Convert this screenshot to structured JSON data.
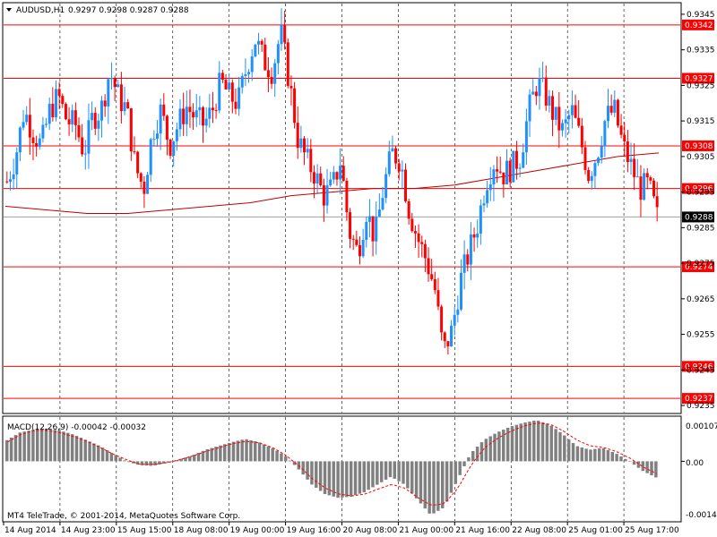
{
  "header": {
    "symbol_timeframe": "AUDUSD,H1",
    "ohlc": "0.9297 0.9298 0.9287 0.9288"
  },
  "macd": {
    "label": "MACD(12,26,9) -0.00042 -0.00032",
    "y_ticks": [
      "0.00107",
      "0.00",
      "-0.00145"
    ]
  },
  "copyright": "MT4 TeleTrade, © 2001-2014, MetaQuotes Software Corp.",
  "colors": {
    "bull": "#1e90ff",
    "bear": "#ff0000",
    "grid": "#000000",
    "level": "#ff0000",
    "ma": "#c00000",
    "macd_hist": "#808080",
    "macd_signal": "#ff0000",
    "current_line": "#a0a0a0"
  },
  "chart_data": {
    "type": "candlestick",
    "price_ticks": [
      "0.9345",
      "0.9335",
      "0.9325",
      "0.9315",
      "0.9305",
      "0.9295",
      "0.9285",
      "0.9275",
      "0.9265",
      "0.9255",
      "0.9245",
      "0.9235"
    ],
    "price_range": [
      0.9233,
      0.9348
    ],
    "time_labels": [
      "14 Aug 2014",
      "14 Aug 23:00",
      "15 Aug 15:00",
      "18 Aug 08:00",
      "19 Aug 00:00",
      "19 Aug 16:00",
      "20 Aug 08:00",
      "21 Aug 00:00",
      "21 Aug 16:00",
      "22 Aug 08:00",
      "25 Aug 01:00",
      "25 Aug 17:00"
    ],
    "levels": [
      "0.9342",
      "0.9327",
      "0.9308",
      "0.9296",
      "0.9274",
      "0.9246",
      "0.9237"
    ],
    "current_price": "0.9288",
    "close_path": [
      0.9298,
      0.9305,
      0.9318,
      0.9312,
      0.9308,
      0.9318,
      0.9322,
      0.9315,
      0.9314,
      0.9306,
      0.9316,
      0.9318,
      0.9329,
      0.9322,
      0.9318,
      0.9302,
      0.9296,
      0.9312,
      0.9318,
      0.9308,
      0.9314,
      0.9319,
      0.9316,
      0.9314,
      0.9318,
      0.9326,
      0.9322,
      0.932,
      0.933,
      0.9338,
      0.9332,
      0.9329,
      0.934,
      0.9326,
      0.931,
      0.9304,
      0.93,
      0.9294,
      0.9296,
      0.9304,
      0.9284,
      0.9278,
      0.929,
      0.9282,
      0.9296,
      0.9306,
      0.9304,
      0.929,
      0.9282,
      0.9276,
      0.9268,
      0.925,
      0.9256,
      0.927,
      0.9278,
      0.9286,
      0.9298,
      0.9304,
      0.93,
      0.9302,
      0.9305,
      0.9318,
      0.9326,
      0.9322,
      0.9316,
      0.9312,
      0.9318,
      0.931,
      0.93,
      0.9306,
      0.9316,
      0.9318,
      0.9308,
      0.9302,
      0.9296,
      0.9297,
      0.9288
    ],
    "ma_path": [
      0.9291,
      0.929,
      0.9289,
      0.9289,
      0.929,
      0.9291,
      0.9292,
      0.9294,
      0.9295,
      0.9296,
      0.9296,
      0.9297,
      0.9299,
      0.9301,
      0.9303,
      0.9305,
      0.9306
    ],
    "macd_hist": [
      0.00055,
      0.00075,
      0.00082,
      0.00085,
      0.0008,
      0.0007,
      0.00055,
      0.0004,
      0.0002,
      0.0,
      -0.0001,
      -0.00012,
      -5e-05,
      5e-05,
      0.00015,
      0.0003,
      0.0004,
      0.0005,
      0.00058,
      0.0005,
      0.00035,
      0.00015,
      -0.0002,
      -0.0006,
      -0.00085,
      -0.00095,
      -0.00092,
      -0.0008,
      -0.0006,
      -0.0004,
      -0.0006,
      -0.001,
      -0.0014,
      -0.0012,
      -0.0005,
      0.0002,
      0.00055,
      0.00075,
      0.0009,
      0.001,
      0.00107,
      0.00095,
      0.0007,
      0.0004,
      0.0003,
      0.00035,
      0.0002,
      0.0,
      -0.00025,
      -0.00042
    ],
    "macd_signal": [
      0.0005,
      0.0007,
      0.0008,
      0.0008,
      0.00074,
      0.00064,
      0.00052,
      0.00036,
      0.00018,
      4e-05,
      -8e-05,
      -8e-05,
      -4e-05,
      4e-05,
      0.00014,
      0.00026,
      0.00036,
      0.00046,
      0.00052,
      0.00048,
      0.00036,
      0.00016,
      -0.00012,
      -0.00045,
      -0.0007,
      -0.00085,
      -0.0009,
      -0.00085,
      -0.00072,
      -0.0006,
      -0.0007,
      -0.00095,
      -0.00115,
      -0.0011,
      -0.0007,
      -0.0001,
      0.00035,
      0.0006,
      0.00078,
      0.00092,
      0.001,
      0.00096,
      0.00078,
      0.00055,
      0.0004,
      0.00036,
      0.00025,
      8e-05,
      -0.00015,
      -0.00032
    ]
  }
}
